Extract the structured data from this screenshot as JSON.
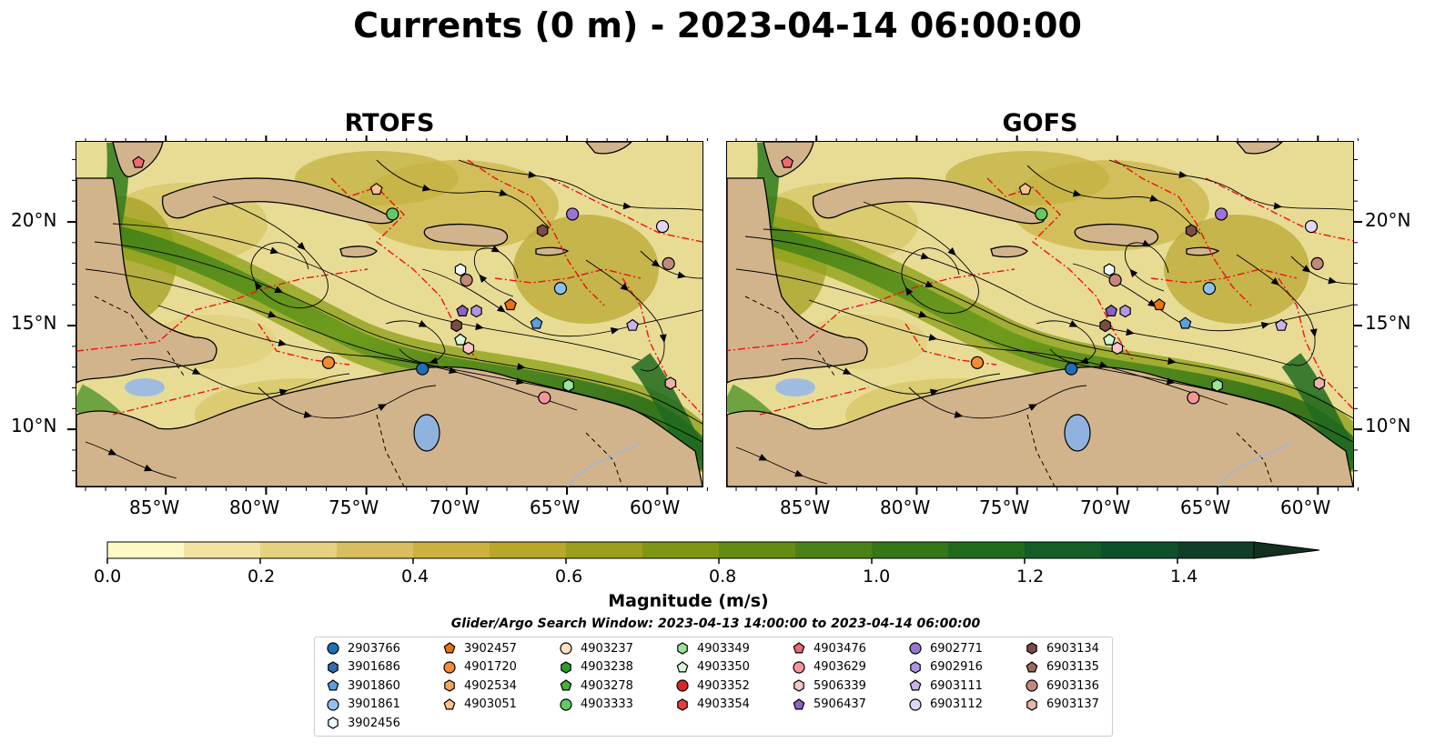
{
  "title": "Currents (0 m) - 2023-04-14 06:00:00",
  "panels": [
    {
      "title": "RTOFS"
    },
    {
      "title": "GOFS"
    }
  ],
  "axes": {
    "lat_labels": [
      "20°N",
      "15°N",
      "10°N"
    ],
    "lon_labels": [
      "85°W",
      "80°W",
      "75°W",
      "70°W",
      "65°W",
      "60°W"
    ],
    "lat_values": [
      20,
      15,
      10
    ],
    "lon_values": [
      -85,
      -80,
      -75,
      -70,
      -65,
      -60
    ],
    "lon_range": [
      -89.5,
      -58.2
    ],
    "lat_range": [
      7.2,
      23.9
    ]
  },
  "colorbar": {
    "label": "Magnitude (m/s)",
    "ticks": [
      "0.0",
      "0.2",
      "0.4",
      "0.6",
      "0.8",
      "1.0",
      "1.2",
      "1.4"
    ],
    "range": [
      0,
      1.5
    ],
    "extend": "max",
    "colors": [
      "#fef9c4",
      "#f2e4a0",
      "#e6d17e",
      "#d9be5f",
      "#ccb141",
      "#b7a82a",
      "#9c9e1c",
      "#7f9614",
      "#638c13",
      "#4c8215",
      "#367617",
      "#216a1d",
      "#125e26",
      "#0e502a",
      "#103f27",
      "#13301f"
    ]
  },
  "search_window": "Glider/Argo Search Window: 2023-04-13 14:00:00 to 2023-04-14 06:00:00",
  "legend": [
    {
      "id": "2903766",
      "marker": "circle",
      "color": "#1f6fb4"
    },
    {
      "id": "3901686",
      "marker": "hexagon",
      "color": "#2f6fb0"
    },
    {
      "id": "3901860",
      "marker": "pentagon",
      "color": "#5a9fe0"
    },
    {
      "id": "3901861",
      "marker": "circle",
      "color": "#8ec0ee"
    },
    {
      "id": "3902456",
      "marker": "hexagon",
      "color": "#f0f8ff"
    },
    {
      "id": "3902457",
      "marker": "pentagon",
      "color": "#e9720f"
    },
    {
      "id": "4901720",
      "marker": "circle",
      "color": "#f58b33"
    },
    {
      "id": "4902534",
      "marker": "hexagon",
      "color": "#f6a65a"
    },
    {
      "id": "4903051",
      "marker": "pentagon",
      "color": "#fbc28c"
    },
    {
      "id": "4903237",
      "marker": "circle",
      "color": "#fde0c5"
    },
    {
      "id": "4903238",
      "marker": "hexagon",
      "color": "#2c9d2c"
    },
    {
      "id": "4903278",
      "marker": "pentagon",
      "color": "#3fb43f"
    },
    {
      "id": "4903333",
      "marker": "circle",
      "color": "#63c963"
    },
    {
      "id": "4903349",
      "marker": "hexagon",
      "color": "#9be49b"
    },
    {
      "id": "4903350",
      "marker": "pentagon",
      "color": "#d5f7d5"
    },
    {
      "id": "4903352",
      "marker": "circle",
      "color": "#d62728"
    },
    {
      "id": "4903354",
      "marker": "hexagon",
      "color": "#e34040"
    },
    {
      "id": "4903476",
      "marker": "pentagon",
      "color": "#ef6a6e"
    },
    {
      "id": "4903629",
      "marker": "circle",
      "color": "#f5959a"
    },
    {
      "id": "5906339",
      "marker": "hexagon",
      "color": "#fbc6c8"
    },
    {
      "id": "5906437",
      "marker": "pentagon",
      "color": "#8a62c8"
    },
    {
      "id": "6902771",
      "marker": "circle",
      "color": "#9b74d4"
    },
    {
      "id": "6902916",
      "marker": "hexagon",
      "color": "#b195e2"
    },
    {
      "id": "6903111",
      "marker": "pentagon",
      "color": "#c8b4ee"
    },
    {
      "id": "6903112",
      "marker": "circle",
      "color": "#e2d6f8"
    },
    {
      "id": "6903134",
      "marker": "hexagon",
      "color": "#7b4c44"
    },
    {
      "id": "6903135",
      "marker": "pentagon",
      "color": "#9d6a60"
    },
    {
      "id": "6903136",
      "marker": "circle",
      "color": "#c2877d"
    },
    {
      "id": "6903137",
      "marker": "hexagon",
      "color": "#e9b5a8"
    }
  ],
  "floats": [
    {
      "id": "4903476",
      "lon": -86.4,
      "lat": 22.9
    },
    {
      "id": "4903051",
      "lon": -74.5,
      "lat": 21.6
    },
    {
      "id": "4903333",
      "lon": -73.7,
      "lat": 20.4
    },
    {
      "id": "6902771",
      "lon": -64.7,
      "lat": 20.4
    },
    {
      "id": "6903134",
      "lon": -66.2,
      "lat": 19.6
    },
    {
      "id": "6903112",
      "lon": -60.2,
      "lat": 19.8
    },
    {
      "id": "6903136",
      "lon": -59.9,
      "lat": 18.0
    },
    {
      "id": "3902456",
      "lon": -70.3,
      "lat": 17.7
    },
    {
      "id": "6903136",
      "lon": -70.0,
      "lat": 17.2
    },
    {
      "id": "3901861",
      "lon": -65.3,
      "lat": 16.8
    },
    {
      "id": "3902457",
      "lon": -67.8,
      "lat": 16.0
    },
    {
      "id": "5906437",
      "lon": -70.2,
      "lat": 15.7
    },
    {
      "id": "6902916",
      "lon": -69.5,
      "lat": 15.7
    },
    {
      "id": "6903134",
      "lon": -70.5,
      "lat": 15.0
    },
    {
      "id": "3901860",
      "lon": -66.5,
      "lat": 15.1
    },
    {
      "id": "6903111",
      "lon": -61.7,
      "lat": 15.0
    },
    {
      "id": "4903350",
      "lon": -70.3,
      "lat": 14.3
    },
    {
      "id": "5906339",
      "lon": -69.9,
      "lat": 13.9
    },
    {
      "id": "4901720",
      "lon": -76.9,
      "lat": 13.2
    },
    {
      "id": "2903766",
      "lon": -72.2,
      "lat": 12.9
    },
    {
      "id": "4903349",
      "lon": -64.9,
      "lat": 12.1
    },
    {
      "id": "6903137",
      "lon": -59.8,
      "lat": 12.2
    },
    {
      "id": "4903629",
      "lon": -66.1,
      "lat": 11.5
    }
  ]
}
